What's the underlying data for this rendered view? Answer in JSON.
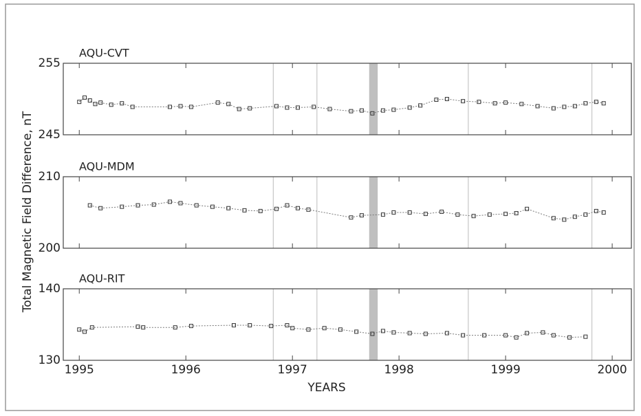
{
  "vlines": [
    1996.82,
    1997.23,
    1998.65,
    1999.81
  ],
  "band": [
    1997.72,
    1997.8
  ],
  "chart_data": [
    {
      "type": "line",
      "title": "AQU-CVT",
      "color": "#333",
      "x": [
        1995.0,
        1995.05,
        1995.1,
        1995.15,
        1995.2,
        1995.3,
        1995.4,
        1995.5,
        1995.85,
        1995.95,
        1996.05,
        1996.3,
        1996.4,
        1996.5,
        1996.6,
        1996.85,
        1996.95,
        1997.05,
        1997.2,
        1997.35,
        1997.55,
        1997.65,
        1997.75,
        1997.85,
        1997.95,
        1998.1,
        1998.2,
        1998.35,
        1998.45,
        1998.6,
        1998.75,
        1998.9,
        1999.0,
        1999.15,
        1999.3,
        1999.45,
        1999.55,
        1999.65,
        1999.75,
        1999.85,
        1999.92
      ],
      "values": [
        249.6,
        250.2,
        249.8,
        249.3,
        249.5,
        249.2,
        249.4,
        248.9,
        248.9,
        249.0,
        248.9,
        249.5,
        249.3,
        248.6,
        248.7,
        249.0,
        248.8,
        248.8,
        248.9,
        248.6,
        248.3,
        248.4,
        248.0,
        248.4,
        248.5,
        248.8,
        249.1,
        249.9,
        250.0,
        249.7,
        249.6,
        249.4,
        249.5,
        249.3,
        249.0,
        248.7,
        248.9,
        249.0,
        249.4,
        249.6,
        249.4
      ],
      "xlim": [
        1994.85,
        2000.18
      ],
      "ylim": [
        245,
        255
      ],
      "yticks": [
        245,
        255
      ]
    },
    {
      "type": "line",
      "title": "AQU-MDM",
      "color": "#333",
      "ylabel": "Total Magnetic Field Difference, nT",
      "x": [
        1995.1,
        1995.2,
        1995.4,
        1995.55,
        1995.7,
        1995.85,
        1995.95,
        1996.1,
        1996.25,
        1996.4,
        1996.55,
        1996.7,
        1996.85,
        1996.95,
        1997.05,
        1997.15,
        1997.55,
        1997.65,
        1997.85,
        1997.95,
        1998.1,
        1998.25,
        1998.4,
        1998.55,
        1998.7,
        1998.85,
        1999.0,
        1999.1,
        1999.2,
        1999.45,
        1999.55,
        1999.65,
        1999.75,
        1999.85,
        1999.92
      ],
      "values": [
        206.0,
        205.6,
        205.8,
        206.0,
        206.1,
        206.5,
        206.3,
        206.0,
        205.8,
        205.6,
        205.3,
        205.2,
        205.5,
        206.0,
        205.6,
        205.4,
        204.3,
        204.6,
        204.7,
        205.0,
        205.0,
        204.8,
        205.1,
        204.7,
        204.5,
        204.7,
        204.8,
        204.9,
        205.5,
        204.2,
        204.0,
        204.4,
        204.7,
        205.2,
        205.0
      ],
      "xlim": [
        1994.85,
        2000.18
      ],
      "ylim": [
        200,
        210
      ],
      "yticks": [
        200,
        210
      ]
    },
    {
      "type": "line",
      "title": "AQU-RIT",
      "color": "#333",
      "xlabel": "YEARS",
      "x": [
        1995.0,
        1995.05,
        1995.12,
        1995.55,
        1995.6,
        1995.9,
        1996.05,
        1996.45,
        1996.6,
        1996.8,
        1996.95,
        1997.0,
        1997.15,
        1997.3,
        1997.45,
        1997.6,
        1997.75,
        1997.85,
        1997.95,
        1998.1,
        1998.25,
        1998.45,
        1998.6,
        1998.8,
        1999.0,
        1999.1,
        1999.2,
        1999.35,
        1999.45,
        1999.6,
        1999.75
      ],
      "values": [
        134.3,
        134.0,
        134.6,
        134.7,
        134.6,
        134.6,
        134.8,
        134.9,
        134.9,
        134.8,
        134.9,
        134.5,
        134.3,
        134.5,
        134.3,
        134.0,
        133.7,
        134.1,
        133.9,
        133.8,
        133.7,
        133.8,
        133.5,
        133.5,
        133.5,
        133.2,
        133.8,
        133.9,
        133.5,
        133.2,
        133.3
      ],
      "xlim": [
        1994.85,
        2000.18
      ],
      "ylim": [
        130,
        140
      ],
      "yticks": [
        130,
        140
      ],
      "xticks": [
        1995,
        1996,
        1997,
        1998,
        1999,
        2000
      ]
    }
  ]
}
